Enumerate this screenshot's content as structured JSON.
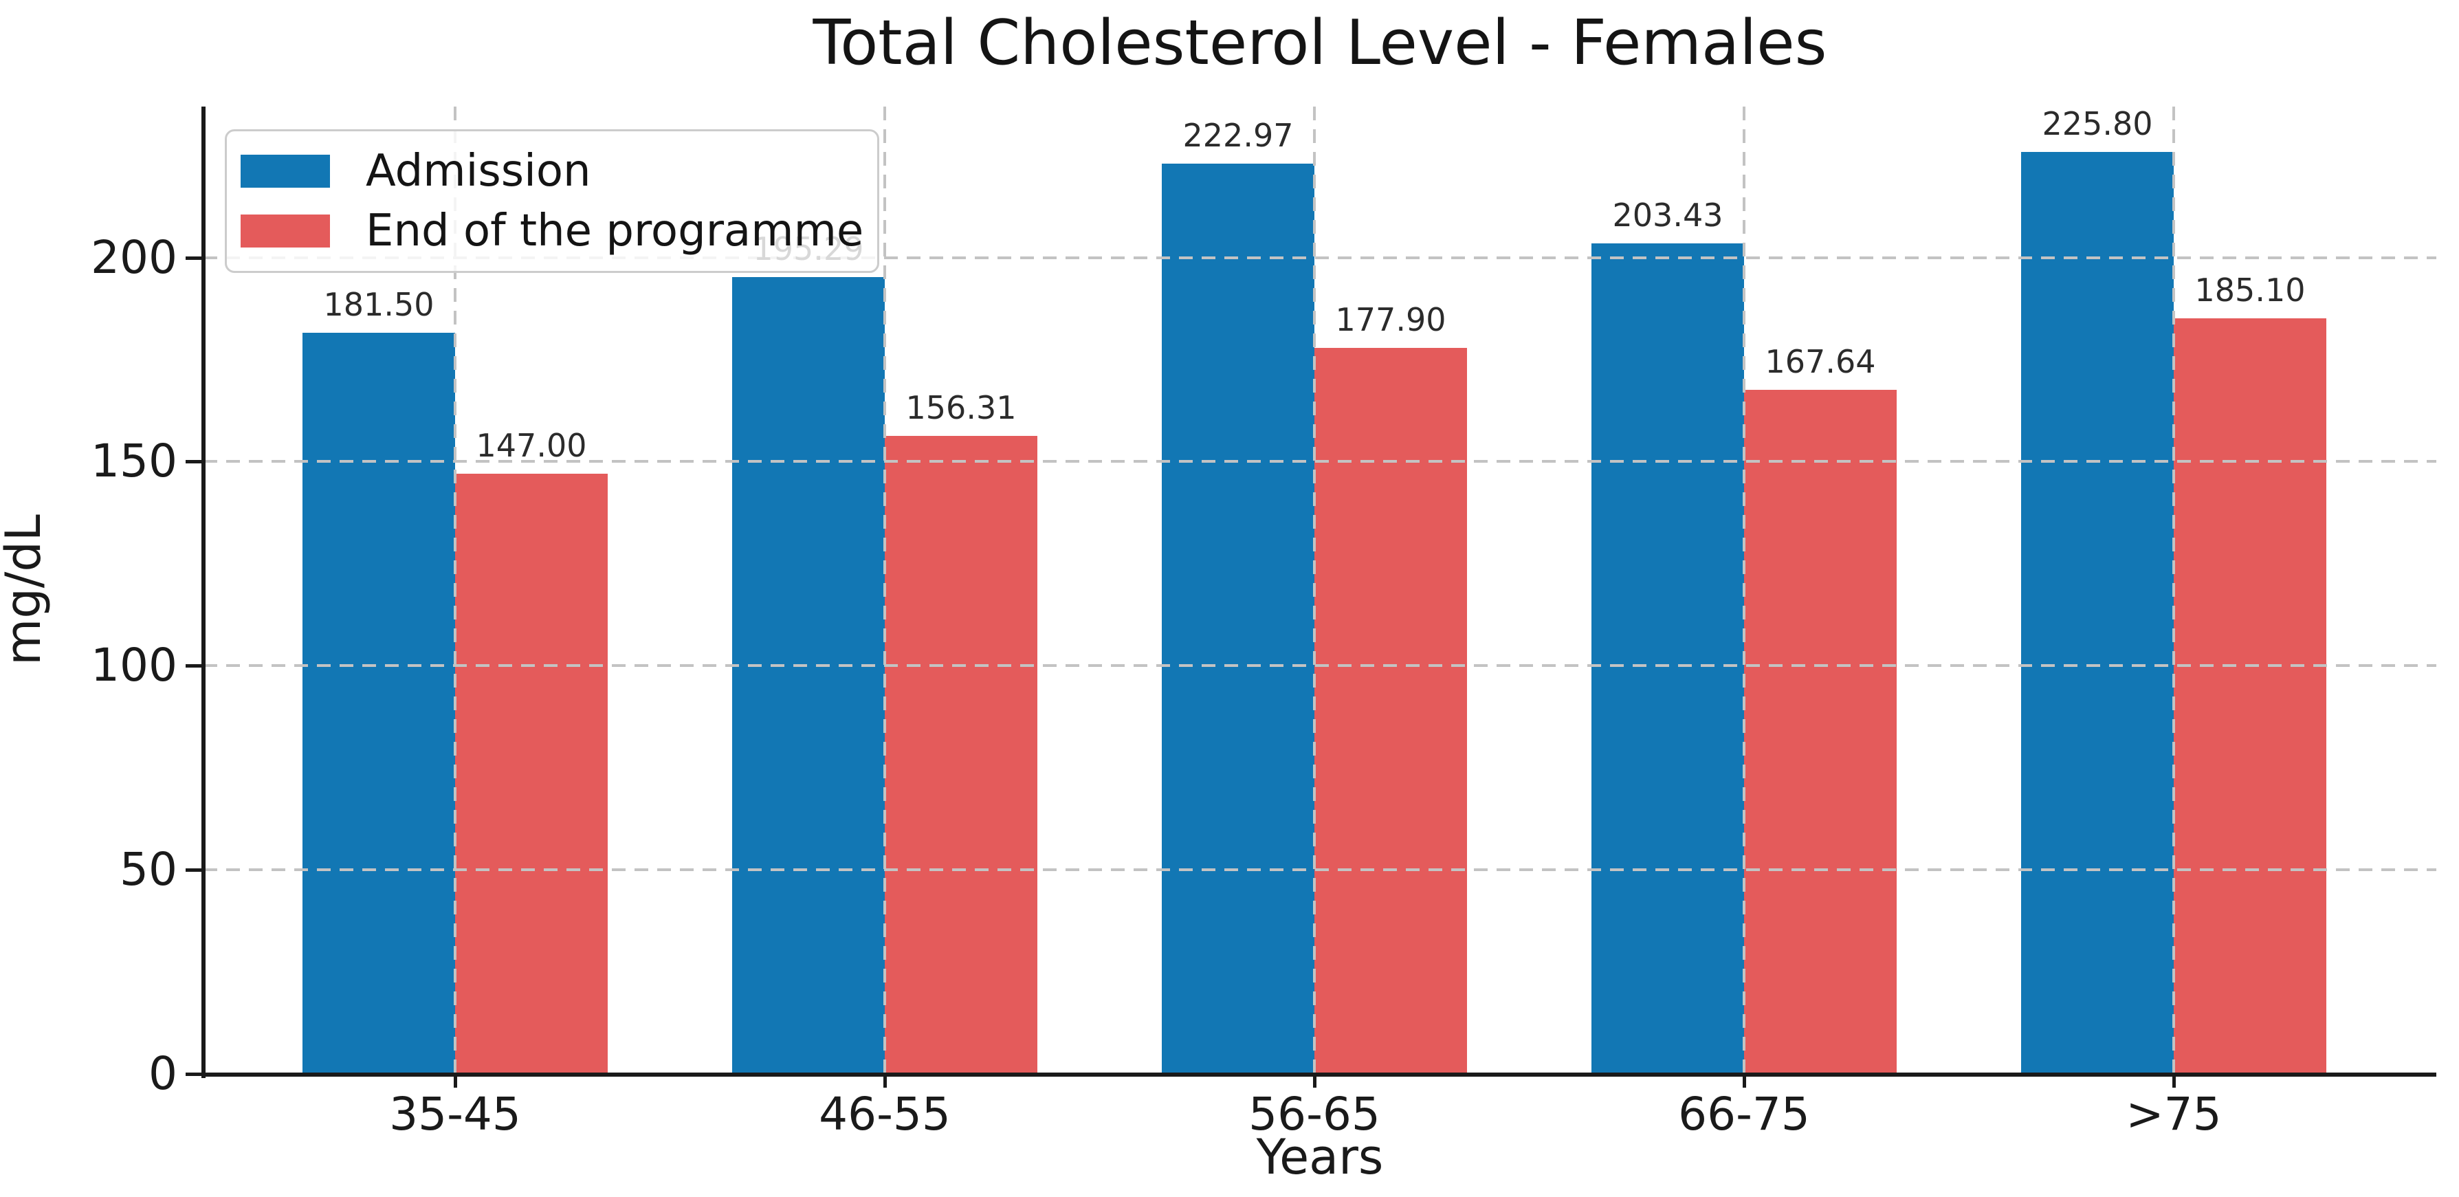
{
  "chart_data": {
    "type": "bar",
    "title": "Total Cholesterol Level - Females",
    "xlabel": "Years",
    "ylabel": "mg/dL",
    "categories": [
      "35-45",
      "46-55",
      "56-65",
      "66-75",
      ">75"
    ],
    "series": [
      {
        "name": "Admission",
        "color": "#1277b4",
        "values": [
          181.5,
          195.29,
          222.97,
          203.43,
          225.8
        ],
        "labels": [
          "181.50",
          "195.29",
          "222.97",
          "203.43",
          "225.80"
        ]
      },
      {
        "name": "End of the programme",
        "color": "#e45b5b",
        "values": [
          147.0,
          156.31,
          177.9,
          167.64,
          185.1
        ],
        "labels": [
          "147.00",
          "156.31",
          "177.90",
          "167.64",
          "185.10"
        ]
      }
    ],
    "yticks": [
      0,
      50,
      100,
      150,
      200
    ],
    "ylim": [
      0,
      237
    ],
    "grid": "dashed gray horizontal lines at yticks and vertical lines at category centers, drawn over bars",
    "legend_position": "upper left"
  }
}
